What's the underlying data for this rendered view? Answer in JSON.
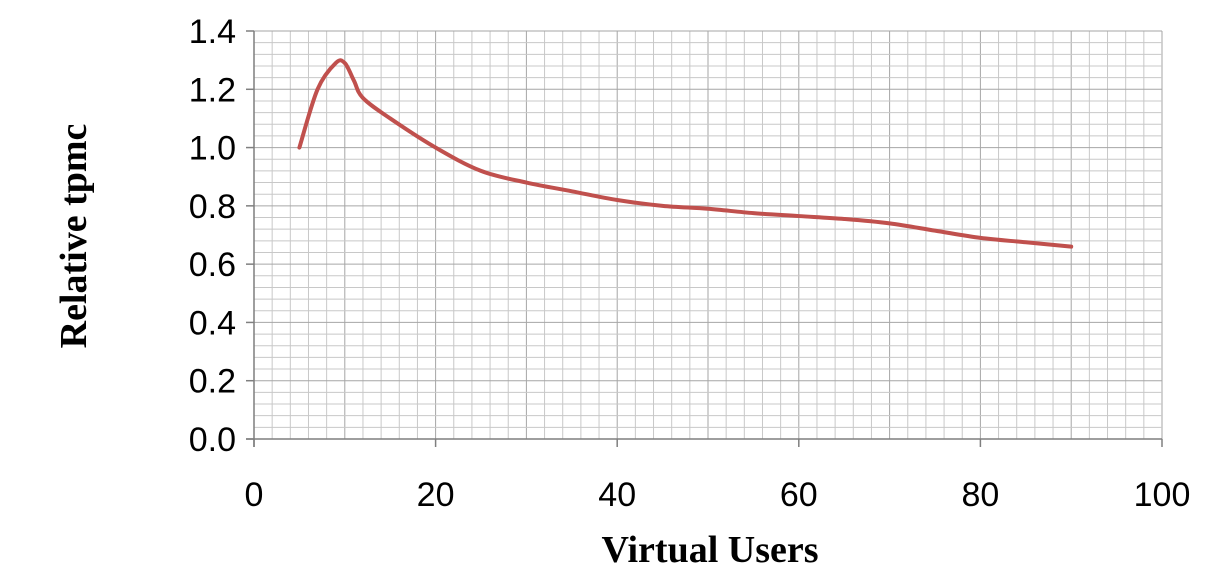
{
  "chart_data": {
    "type": "line",
    "title": "",
    "xlabel": "Virtual Users",
    "ylabel": "Relative tpmc",
    "xlim": [
      0,
      100
    ],
    "ylim": [
      0,
      1.4
    ],
    "x_ticks": [
      "0",
      "20",
      "40",
      "60",
      "80",
      "100"
    ],
    "y_ticks": [
      "0.0",
      "0.2",
      "0.4",
      "0.6",
      "0.8",
      "1.0",
      "1.2",
      "1.4"
    ],
    "grid": true,
    "legend": "none",
    "series": [
      {
        "color": "#c0504d",
        "x": [
          5,
          7,
          9,
          10,
          11,
          12,
          15,
          20,
          25,
          30,
          35,
          40,
          45,
          50,
          55,
          60,
          65,
          70,
          75,
          80,
          85,
          90
        ],
        "y": [
          1.0,
          1.2,
          1.29,
          1.29,
          1.23,
          1.17,
          1.1,
          1.0,
          0.92,
          0.88,
          0.85,
          0.82,
          0.8,
          0.79,
          0.775,
          0.765,
          0.755,
          0.74,
          0.715,
          0.69,
          0.675,
          0.66
        ]
      }
    ]
  }
}
